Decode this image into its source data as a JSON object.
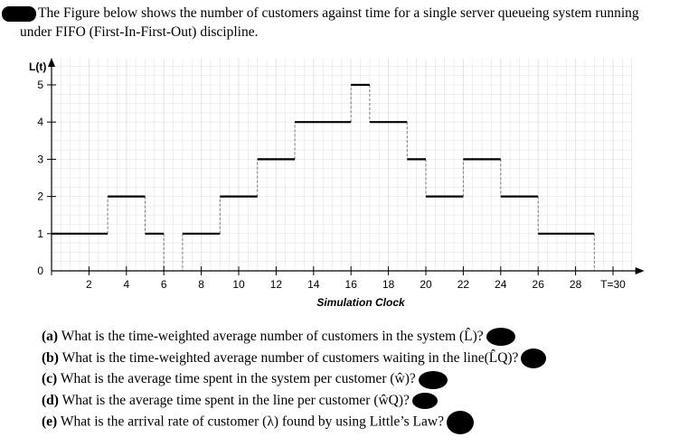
{
  "intro_text": "The Figure below shows the number of customers against time for a single server queueing system running under FIFO (First-In-First-Out) discipline.",
  "questions": [
    {
      "tag": "(a)",
      "text": "What is the time-weighted average number of customers in the system (L̂)?"
    },
    {
      "tag": "(b)",
      "text": "What is the time-weighted average number of customers waiting in the line(L̂Q)?"
    },
    {
      "tag": "(c)",
      "text": "What is the average time spent in the system per customer (ŵ)?"
    },
    {
      "tag": "(d)",
      "text": "What is the average time spent in the line per customer (ŵQ)?"
    },
    {
      "tag": "(e)",
      "text": "What is the arrival rate of customer (λ) found by using Little’s Law?"
    }
  ],
  "chart_data": {
    "type": "line",
    "step": true,
    "title": "",
    "ylabel": "L(t)",
    "xlabel": "Simulation Clock",
    "xlim": [
      0,
      31
    ],
    "ylim": [
      0,
      5.7
    ],
    "x_ticks": [
      0,
      2,
      4,
      6,
      8,
      10,
      12,
      14,
      16,
      18,
      20,
      22,
      24,
      26,
      28,
      30
    ],
    "x_tick_labels": [
      "",
      "2",
      "4",
      "6",
      "8",
      "10",
      "12",
      "14",
      "16",
      "18",
      "20",
      "22",
      "24",
      "26",
      "28",
      "T=30"
    ],
    "y_ticks": [
      0,
      1,
      2,
      3,
      4,
      5
    ],
    "y_tick_labels": [
      "0",
      "1",
      "2",
      "3",
      "4",
      "5"
    ],
    "grid": true,
    "segments": [
      {
        "x0": 0,
        "x1": 3,
        "y": 1
      },
      {
        "x0": 3,
        "x1": 5,
        "y": 2
      },
      {
        "x0": 5,
        "x1": 6,
        "y": 1
      },
      {
        "x0": 7,
        "x1": 9,
        "y": 1
      },
      {
        "x0": 9,
        "x1": 11,
        "y": 2
      },
      {
        "x0": 11,
        "x1": 13,
        "y": 3
      },
      {
        "x0": 13,
        "x1": 16,
        "y": 4
      },
      {
        "x0": 16,
        "x1": 17,
        "y": 5
      },
      {
        "x0": 17,
        "x1": 19,
        "y": 4
      },
      {
        "x0": 19,
        "x1": 20,
        "y": 3
      },
      {
        "x0": 20,
        "x1": 22,
        "y": 2
      },
      {
        "x0": 22,
        "x1": 24,
        "y": 3
      },
      {
        "x0": 24,
        "x1": 26,
        "y": 2
      },
      {
        "x0": 26,
        "x1": 29,
        "y": 1
      }
    ],
    "colors": {
      "line": "#000000",
      "grid": "#e3e3e3",
      "dash": "#777777"
    }
  }
}
